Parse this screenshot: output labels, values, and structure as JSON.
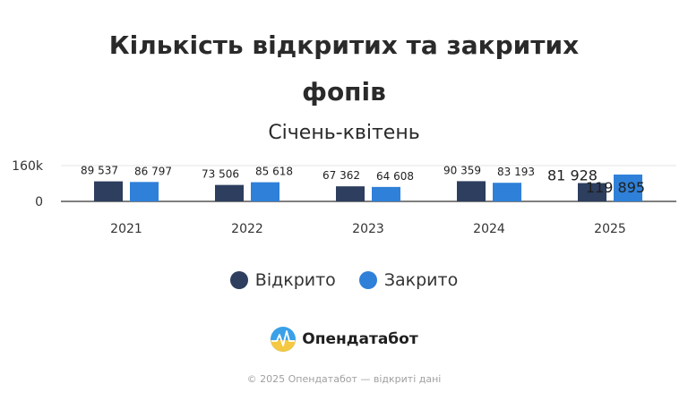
{
  "header": {
    "title_line1": "Кількість відкритих та закритих",
    "title_line2": "фопів",
    "subtitle": "Січень-квітень"
  },
  "legend": {
    "opened_label": "Відкрито",
    "closed_label": "Закрито"
  },
  "brand": {
    "name": "Опендатабот"
  },
  "footer": {
    "text": "© 2025 Опендатабот — відкриті дані"
  },
  "colors": {
    "opened": "#2d3e5e",
    "closed": "#2f80d8",
    "axis": "#333333",
    "grid": "#e6e6e6"
  },
  "chart_data": {
    "type": "bar",
    "categories": [
      "2021",
      "2022",
      "2023",
      "2024",
      "2025"
    ],
    "series": [
      {
        "name": "Відкрито",
        "values": [
          89537,
          73506,
          67362,
          90359,
          81928
        ],
        "labels": [
          "89 537",
          "73 506",
          "67 362",
          "90 359",
          "81 928"
        ]
      },
      {
        "name": "Закрито",
        "values": [
          86797,
          85618,
          64608,
          83193,
          119895
        ],
        "labels": [
          "86 797",
          "85 618",
          "64 608",
          "83 193",
          "119 895"
        ]
      }
    ],
    "ylim": [
      0,
      160000
    ],
    "yticks": [
      {
        "value": 0,
        "label": "0"
      },
      {
        "value": 160000,
        "label": "160k"
      }
    ],
    "grid": true,
    "legend": "bottom"
  }
}
